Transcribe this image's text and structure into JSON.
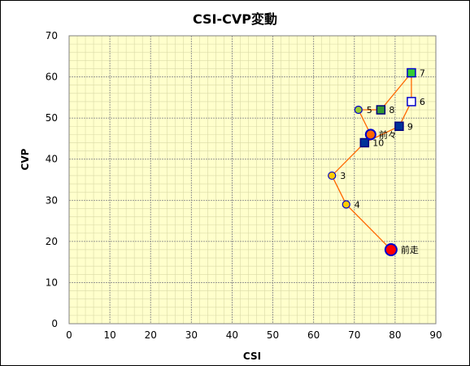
{
  "chart_data": {
    "type": "scatter",
    "title": "CSI-CVP変動",
    "xlabel": "CSI",
    "ylabel": "CVP",
    "xlim": [
      0,
      90
    ],
    "ylim": [
      0,
      70
    ],
    "x_ticks": [
      "0",
      "10",
      "20",
      "30",
      "40",
      "50",
      "60",
      "70",
      "80",
      "90"
    ],
    "y_ticks": [
      "0",
      "10",
      "20",
      "30",
      "40",
      "50",
      "60",
      "70"
    ],
    "grid": true,
    "plot_background": "#ffffcc",
    "line_color": "#ff6600",
    "points": [
      {
        "label": "前走",
        "x": 79,
        "y": 18,
        "shape": "circle",
        "size": "large",
        "fill": "#ff0000",
        "stroke": "#0000cc"
      },
      {
        "label": "4",
        "x": 68,
        "y": 29,
        "shape": "circle",
        "size": "small",
        "fill": "#ffcc00",
        "stroke": "#0000cc"
      },
      {
        "label": "3",
        "x": 64.5,
        "y": 36,
        "shape": "circle",
        "size": "small",
        "fill": "#ffcc00",
        "stroke": "#0000cc"
      },
      {
        "label": "10",
        "x": 72.5,
        "y": 44,
        "shape": "square",
        "size": "small",
        "fill": "#003399",
        "stroke": "#000080"
      },
      {
        "label": "9",
        "x": 81,
        "y": 48,
        "shape": "square",
        "size": "small",
        "fill": "#003399",
        "stroke": "#000080"
      },
      {
        "label": "6",
        "x": 84,
        "y": 54,
        "shape": "square",
        "size": "small",
        "fill": "#ffffff",
        "stroke": "#0000cc"
      },
      {
        "label": "7",
        "x": 84,
        "y": 61,
        "shape": "square",
        "size": "small",
        "fill": "#33cc33",
        "stroke": "#0000cc"
      },
      {
        "label": "8",
        "x": 76.5,
        "y": 52,
        "shape": "square",
        "size": "small",
        "fill": "#339933",
        "stroke": "#000080"
      },
      {
        "label": "5",
        "x": 71,
        "y": 52,
        "shape": "circle",
        "size": "small",
        "fill": "#99cc33",
        "stroke": "#0000cc"
      },
      {
        "label": "前々",
        "x": 74,
        "y": 46,
        "shape": "circle",
        "size": "medium",
        "fill": "#ff6600",
        "stroke": "#0000cc"
      }
    ]
  }
}
